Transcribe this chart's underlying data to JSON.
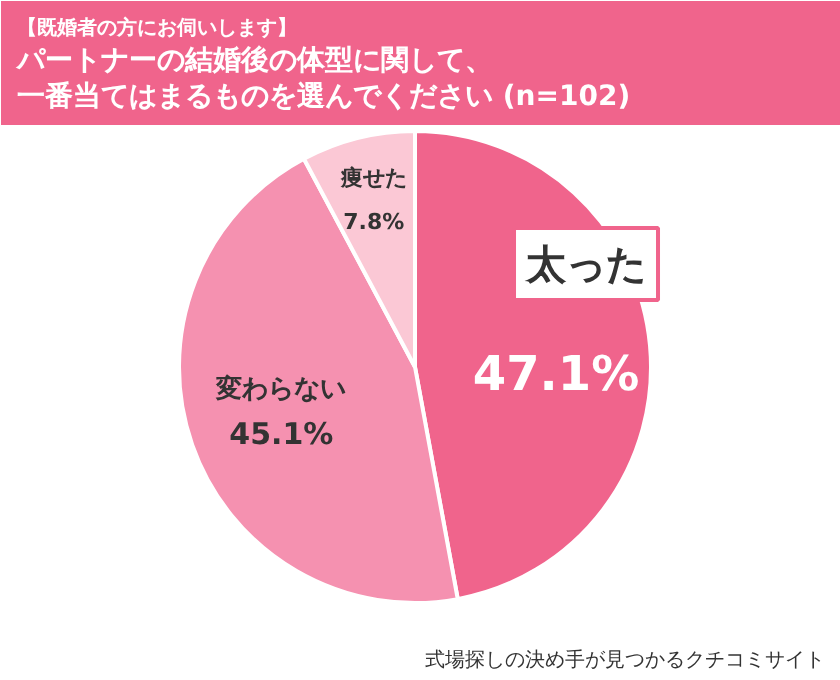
{
  "chart_data": {
    "type": "pie",
    "subtitle": "【既婚者の方にお伺いします】",
    "title": "パートナーの結婚後の体型に関して、一番当てはまるものを選んでください (n=102)",
    "categories": [
      "太った",
      "変わらない",
      "痩せた"
    ],
    "values": [
      47.1,
      45.1,
      7.8
    ],
    "colors": [
      "#f0648c",
      "#f591b0",
      "#fbc8d5"
    ],
    "value_labels": [
      "47.1%",
      "45.1%",
      "7.8%"
    ],
    "annotations": [
      "式場探しの決め手が見つかるクチコミサイト"
    ]
  }
}
